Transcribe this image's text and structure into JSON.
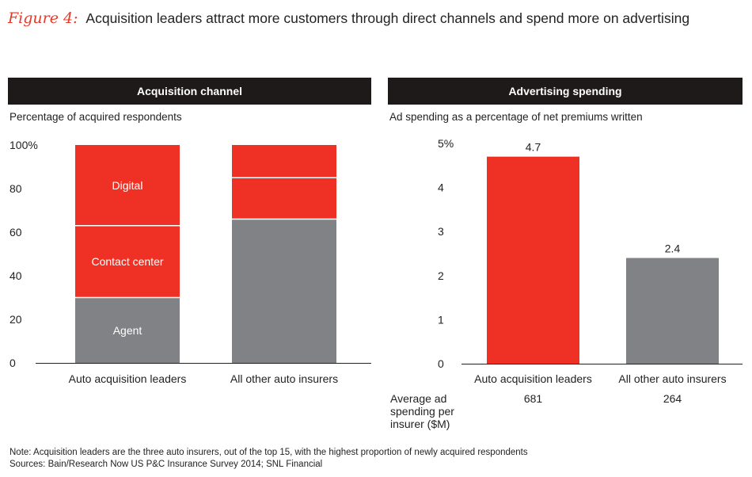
{
  "title": {
    "label": "Figure 4:",
    "text": "Acquisition leaders attract more customers through direct channels and spend more on advertising"
  },
  "colors": {
    "red": "#ee3124",
    "gray": "#808285",
    "header_bg": "#1f1a1a"
  },
  "chart_data": [
    {
      "type": "bar",
      "stacked": true,
      "title": "Acquisition channel",
      "ylabel": "Percentage of acquired respondents",
      "ylim": [
        0,
        100
      ],
      "yticks": [
        {
          "value": 0,
          "label": "0"
        },
        {
          "value": 20,
          "label": "20"
        },
        {
          "value": 40,
          "label": "40"
        },
        {
          "value": 60,
          "label": "60"
        },
        {
          "value": 80,
          "label": "80"
        },
        {
          "value": 100,
          "label": "100%"
        }
      ],
      "categories": [
        "Auto acquisition leaders",
        "All other auto insurers"
      ],
      "series": [
        {
          "name": "Agent",
          "values": [
            30,
            66
          ],
          "color": "#808285",
          "show_label": [
            true,
            false
          ]
        },
        {
          "name": "Contact center",
          "values": [
            33,
            19
          ],
          "color": "#ee3124",
          "show_label": [
            true,
            false
          ]
        },
        {
          "name": "Digital",
          "values": [
            37,
            15
          ],
          "color": "#ee3124",
          "show_label": [
            true,
            false
          ]
        }
      ]
    },
    {
      "type": "bar",
      "title": "Advertising spending",
      "ylabel": "Ad spending as a percentage of net premiums written",
      "ylim": [
        0,
        5
      ],
      "yticks": [
        {
          "value": 0,
          "label": "0"
        },
        {
          "value": 1,
          "label": "1"
        },
        {
          "value": 2,
          "label": "2"
        },
        {
          "value": 3,
          "label": "3"
        },
        {
          "value": 4,
          "label": "4"
        },
        {
          "value": 5,
          "label": "5%"
        }
      ],
      "categories": [
        "Auto acquisition leaders",
        "All other auto insurers"
      ],
      "values": [
        4.7,
        2.4
      ],
      "value_labels": [
        "4.7",
        "2.4"
      ],
      "colors": [
        "#ee3124",
        "#808285"
      ],
      "extra_row": {
        "label_lines": [
          "Average ad",
          "spending per",
          "insurer ($M)"
        ],
        "values": [
          "681",
          "264"
        ]
      }
    }
  ],
  "notes": {
    "note": "Note: Acquisition leaders are the three auto insurers, out of the top 15, with the highest proportion of newly acquired respondents",
    "sources": "Sources: Bain/Research Now US P&C Insurance Survey 2014; SNL Financial"
  }
}
